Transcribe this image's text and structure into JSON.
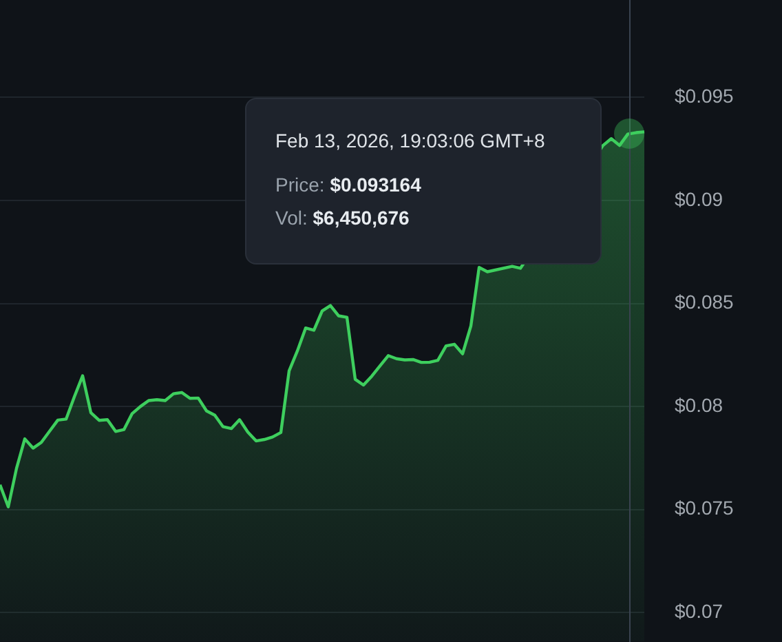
{
  "chart_data": {
    "type": "area",
    "categories": [
      null,
      null,
      null,
      null,
      null,
      null,
      null,
      null,
      null,
      null,
      null,
      null,
      null,
      null,
      null,
      null,
      null,
      null,
      null,
      null,
      null,
      null,
      null,
      null,
      null,
      null,
      null,
      null,
      null,
      null,
      null,
      null,
      null,
      null,
      null,
      null,
      null,
      null,
      null,
      null,
      null,
      null,
      null,
      null,
      null,
      null,
      null,
      null,
      null,
      null,
      null,
      null,
      null,
      null,
      null,
      null,
      null,
      null,
      null,
      null,
      null,
      null,
      null,
      null,
      null,
      null,
      null,
      null,
      null,
      null,
      null,
      null,
      null,
      null,
      null,
      null,
      null,
      null,
      null
    ],
    "series": [
      {
        "color": "#3ecf5e",
        "values": [
          0.0762,
          0.07513,
          0.077,
          0.07843,
          0.07798,
          0.07826,
          0.0788,
          0.07934,
          0.07939,
          0.08047,
          0.08149,
          0.0797,
          0.07933,
          0.07936,
          0.07879,
          0.07888,
          0.07966,
          0.08,
          0.08029,
          0.08033,
          0.08029,
          0.08062,
          0.08068,
          0.0804,
          0.08041,
          0.07979,
          0.07958,
          0.07902,
          0.07893,
          0.07936,
          0.07876,
          0.07833,
          0.0784,
          0.07852,
          0.07874,
          0.08173,
          0.0827,
          0.08381,
          0.0837,
          0.08464,
          0.0849,
          0.0844,
          0.08433,
          0.08132,
          0.08104,
          0.08147,
          0.08197,
          0.08247,
          0.08232,
          0.08226,
          0.08228,
          0.08214,
          0.08215,
          0.08224,
          0.08294,
          0.08302,
          0.08256,
          0.0839,
          0.08675,
          0.08654,
          null,
          null,
          0.0868,
          0.08671,
          null,
          null,
          null,
          null,
          null,
          null,
          null,
          null,
          null,
          0.09267,
          0.093,
          0.09267,
          0.09322,
          0.09329,
          0.09333
        ]
      }
    ],
    "ylim": [
      0.0686,
      0.0997
    ],
    "yticks": [
      {
        "value": 0.07,
        "label": "$0.07"
      },
      {
        "value": 0.075,
        "label": "$0.075"
      },
      {
        "value": 0.08,
        "label": "$0.08"
      },
      {
        "value": 0.085,
        "label": "$0.085"
      },
      {
        "value": 0.09,
        "label": "$0.09"
      },
      {
        "value": 0.095,
        "label": "$0.095"
      }
    ],
    "tick_labels": "y",
    "grid": "y",
    "marker": "none",
    "line_style": "solid",
    "annotations": [
      "Feb 13, 2026, 19:03:06 GMT+8",
      "Price: $0.093164",
      "Vol: $6,450,676"
    ]
  }
}
